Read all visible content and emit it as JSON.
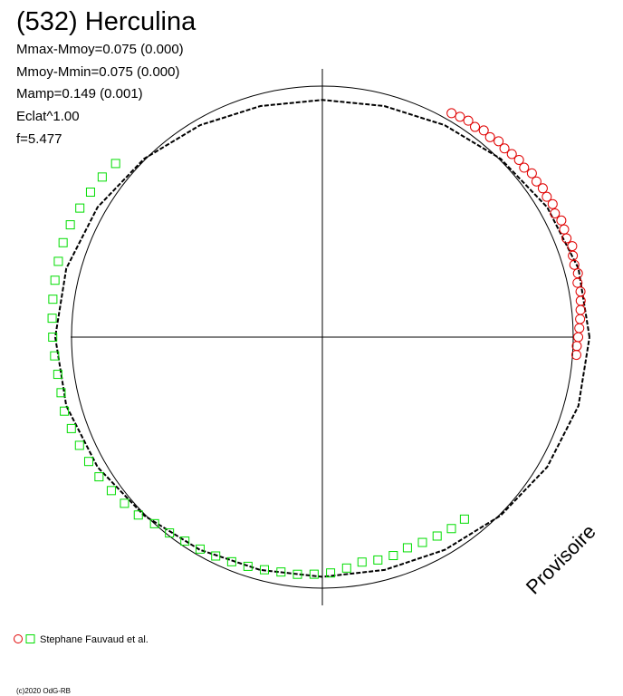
{
  "chart_data": {
    "type": "polar",
    "title": "(532) Herculina",
    "info": [
      "Mmax-Mmoy=0.075 (0.000)",
      "Mmoy-Mmin=0.075 (0.000)",
      "Mamp=0.149 (0.001)",
      "Eclat^1.00",
      "f=5.477"
    ],
    "annotation": "Provisoire",
    "legend": "Stephane Fauvaud et al.",
    "footer": "(c)2020 OdG-RB",
    "rlim": [
      0,
      1
    ],
    "fit": {
      "color": "#000000",
      "x": [
        0,
        15,
        30,
        45,
        60,
        75,
        90,
        105,
        120,
        135,
        150,
        165,
        180,
        195,
        210,
        225,
        240,
        255,
        270,
        285,
        300,
        315,
        330,
        345,
        360
      ],
      "values": [
        1.065,
        1.057,
        1.035,
        1.005,
        0.975,
        0.953,
        0.945,
        0.953,
        0.975,
        1.005,
        1.035,
        1.057,
        1.065,
        1.057,
        1.035,
        1.005,
        0.978,
        0.96,
        0.955,
        0.96,
        0.978,
        1.005,
        1.035,
        1.057,
        1.065
      ]
    },
    "series": [
      {
        "marker": "circle",
        "color": "#e00000",
        "x": [
          60,
          58,
          56,
          54,
          52,
          50,
          48,
          46,
          44,
          42,
          40,
          38,
          36,
          34,
          32,
          30,
          28,
          26,
          24,
          22,
          20,
          18,
          16,
          14,
          12,
          10,
          8,
          6,
          4,
          2,
          0,
          -2,
          -4
        ],
        "values": [
          1.03,
          1.035,
          1.04,
          1.035,
          1.045,
          1.04,
          1.05,
          1.045,
          1.05,
          1.055,
          1.05,
          1.06,
          1.055,
          1.06,
          1.055,
          1.06,
          1.05,
          1.06,
          1.055,
          1.05,
          1.06,
          1.05,
          1.045,
          1.05,
          1.04,
          1.045,
          1.04,
          1.035,
          1.03,
          1.025,
          1.02,
          1.015,
          1.015
        ]
      },
      {
        "marker": "square",
        "color": "#00dd00",
        "x": [
          140,
          144,
          148,
          152,
          156,
          160,
          164,
          168,
          172,
          176,
          180,
          184,
          188,
          192,
          196,
          200,
          204,
          208,
          212,
          216,
          220,
          224,
          228,
          232,
          236,
          240,
          244,
          248,
          252,
          256,
          260,
          264,
          268,
          272,
          276,
          280,
          284,
          288,
          292,
          296,
          300,
          304,
          308
        ],
        "values": [
          1.076,
          1.085,
          1.09,
          1.095,
          1.1,
          1.1,
          1.095,
          1.09,
          1.085,
          1.08,
          1.075,
          1.07,
          1.065,
          1.065,
          1.07,
          1.065,
          1.06,
          1.055,
          1.05,
          1.04,
          1.03,
          1.02,
          1.0,
          0.99,
          0.98,
          0.975,
          0.97,
          0.965,
          0.96,
          0.955,
          0.95,
          0.95,
          0.945,
          0.94,
          0.925,
          0.91,
          0.915,
          0.915,
          0.905,
          0.91,
          0.915,
          0.92,
          0.92
        ]
      }
    ]
  }
}
